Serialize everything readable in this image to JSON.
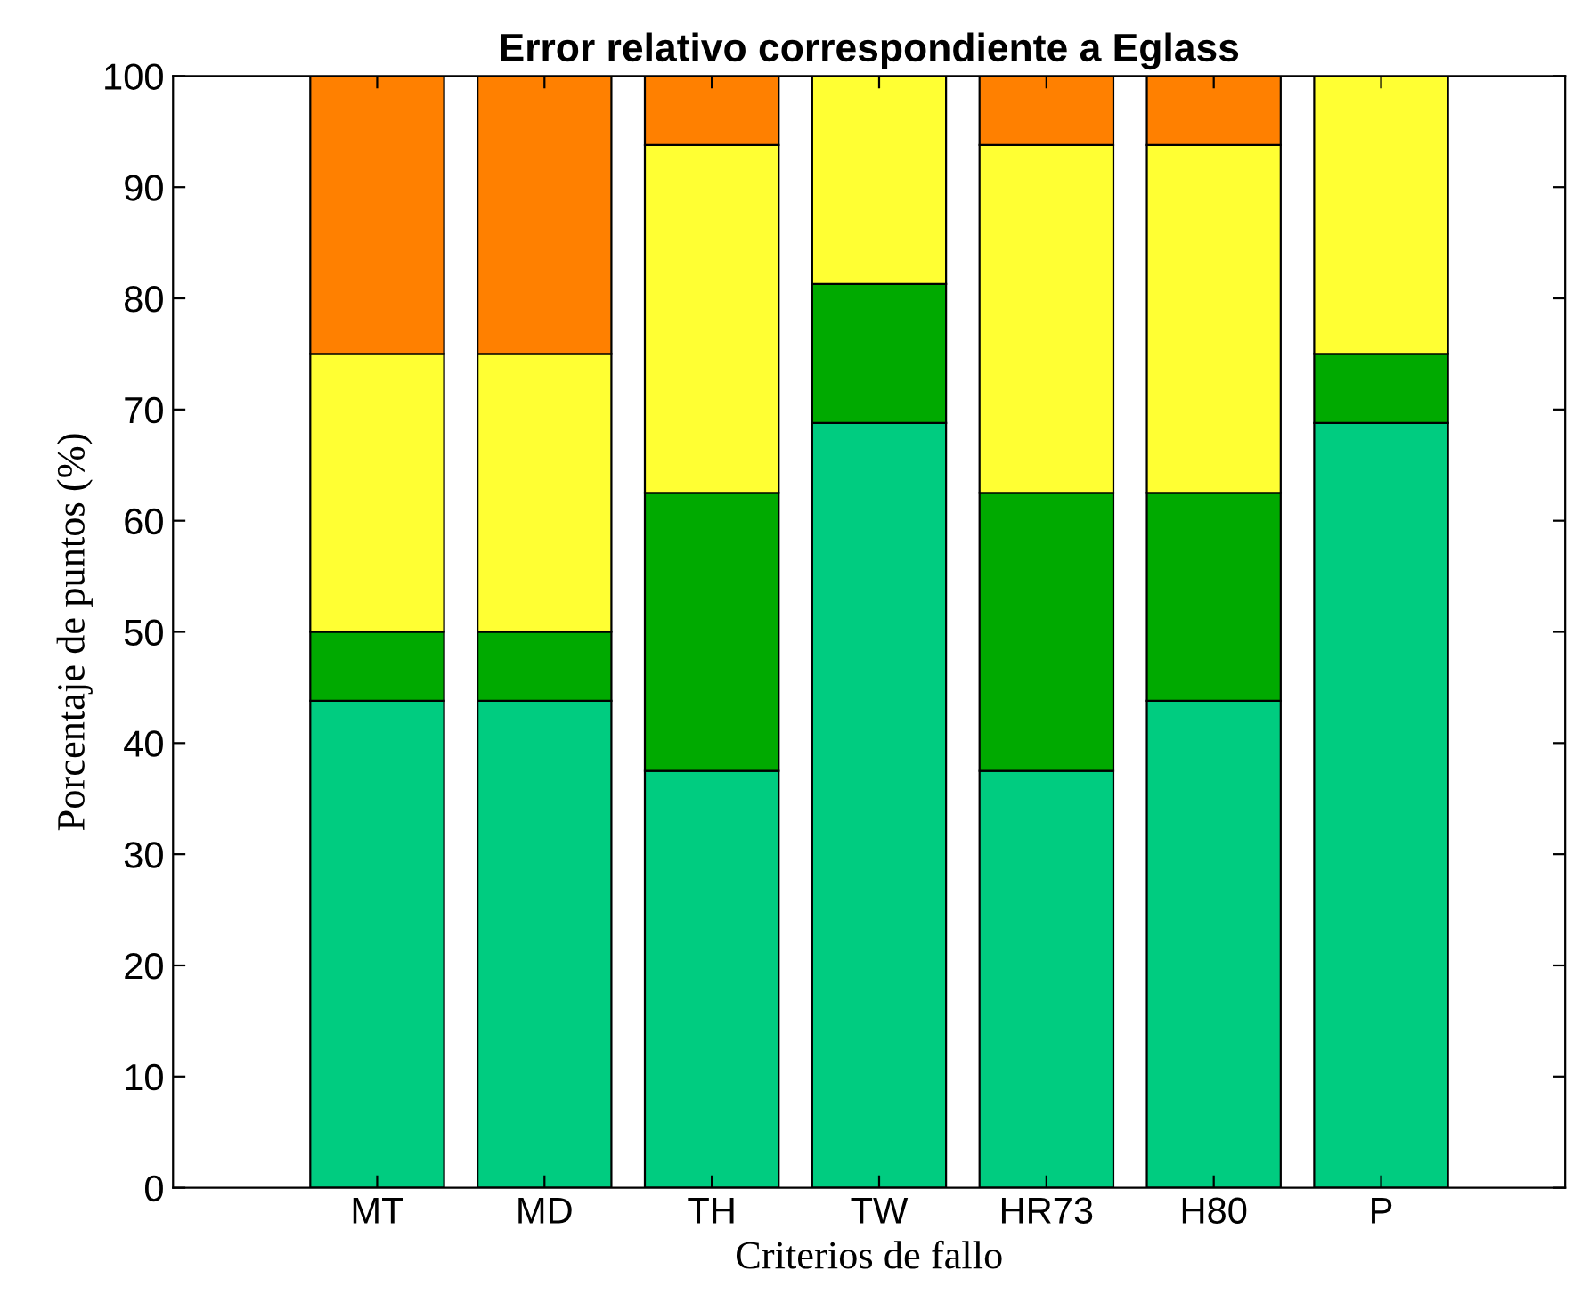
{
  "chart_data": {
    "type": "bar",
    "stacked": true,
    "title": "Error relativo correspondiente a Eglass",
    "xlabel": "Criterios de fallo",
    "ylabel": "Porcentaje de puntos (%)",
    "categories": [
      "MT",
      "MD",
      "TH",
      "TW",
      "HR73",
      "H80",
      "P"
    ],
    "series": [
      {
        "color": "#00cc80",
        "values": [
          43.8,
          43.8,
          37.5,
          68.8,
          37.5,
          43.8,
          68.8
        ]
      },
      {
        "color": "#00aa00",
        "values": [
          6.2,
          6.2,
          25,
          12.5,
          25,
          18.7,
          6.2
        ]
      },
      {
        "color": "#ffff33",
        "values": [
          25,
          25,
          31.3,
          18.7,
          31.3,
          31.3,
          25
        ]
      },
      {
        "color": "#ff8000",
        "values": [
          25,
          25,
          6.2,
          null,
          6.2,
          6.2,
          null
        ]
      }
    ],
    "ylim": [
      0,
      100
    ],
    "yticks": [
      0,
      10,
      20,
      30,
      40,
      50,
      60,
      70,
      80,
      90,
      100
    ],
    "grid": false
  }
}
